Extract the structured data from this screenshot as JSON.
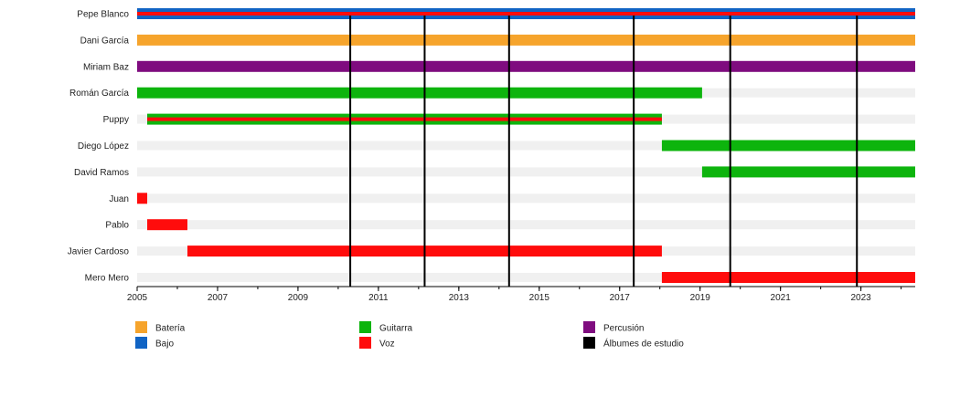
{
  "chart_data": {
    "type": "timeline",
    "title": "",
    "xlabel": "",
    "ylabel": "",
    "xlim": [
      2005.0,
      2024.35
    ],
    "x_ticks": [
      "2005",
      "2007",
      "2009",
      "2011",
      "2013",
      "2015",
      "2017",
      "2019",
      "2021",
      "2023"
    ],
    "members": [
      "Pepe Blanco",
      "Dani García",
      "Miriam Baz",
      "Román García",
      "Puppy",
      "Diego López",
      "David Ramos",
      "Juan",
      "Pablo",
      "Javier Cardoso",
      "Mero Mero"
    ],
    "roles": [
      {
        "key": "bateria",
        "name": "Batería",
        "color": "#f6a42c"
      },
      {
        "key": "guitarra",
        "name": "Guitarra",
        "color": "#0db40d"
      },
      {
        "key": "percusion",
        "name": "Percusión",
        "color": "#7f0c7f"
      },
      {
        "key": "bajo",
        "name": "Bajo",
        "color": "#1164c4"
      },
      {
        "key": "voz",
        "name": "Voz",
        "color": "#ff0c0c"
      },
      {
        "key": "albumes",
        "name": "Álbumes de estudio",
        "color": "#000000"
      }
    ],
    "bars": [
      {
        "member": "Pepe Blanco",
        "role": "bajo",
        "start": 2005.0,
        "end": 2024.35
      },
      {
        "member": "Pepe Blanco",
        "role": "voz",
        "start": 2005.0,
        "end": 2024.35
      },
      {
        "member": "Dani García",
        "role": "bateria",
        "start": 2005.0,
        "end": 2024.35
      },
      {
        "member": "Miriam Baz",
        "role": "percusion",
        "start": 2005.0,
        "end": 2024.35
      },
      {
        "member": "Román García",
        "role": "guitarra",
        "start": 2005.0,
        "end": 2019.05
      },
      {
        "member": "Puppy",
        "role": "guitarra",
        "start": 2005.25,
        "end": 2018.05
      },
      {
        "member": "Puppy",
        "role": "voz",
        "start": 2005.25,
        "end": 2018.05
      },
      {
        "member": "Diego López",
        "role": "guitarra",
        "start": 2018.05,
        "end": 2024.35
      },
      {
        "member": "David Ramos",
        "role": "guitarra",
        "start": 2019.05,
        "end": 2024.35
      },
      {
        "member": "Juan",
        "role": "voz",
        "start": 2005.0,
        "end": 2005.25
      },
      {
        "member": "Pablo",
        "role": "voz",
        "start": 2005.25,
        "end": 2006.25
      },
      {
        "member": "Javier Cardoso",
        "role": "voz",
        "start": 2006.25,
        "end": 2018.05
      },
      {
        "member": "Mero Mero",
        "role": "voz",
        "start": 2018.05,
        "end": 2024.35
      }
    ],
    "albums": [
      2010.3,
      2012.15,
      2014.25,
      2017.35,
      2019.75,
      2022.9
    ],
    "grid": false,
    "legend_position": "bottom"
  }
}
